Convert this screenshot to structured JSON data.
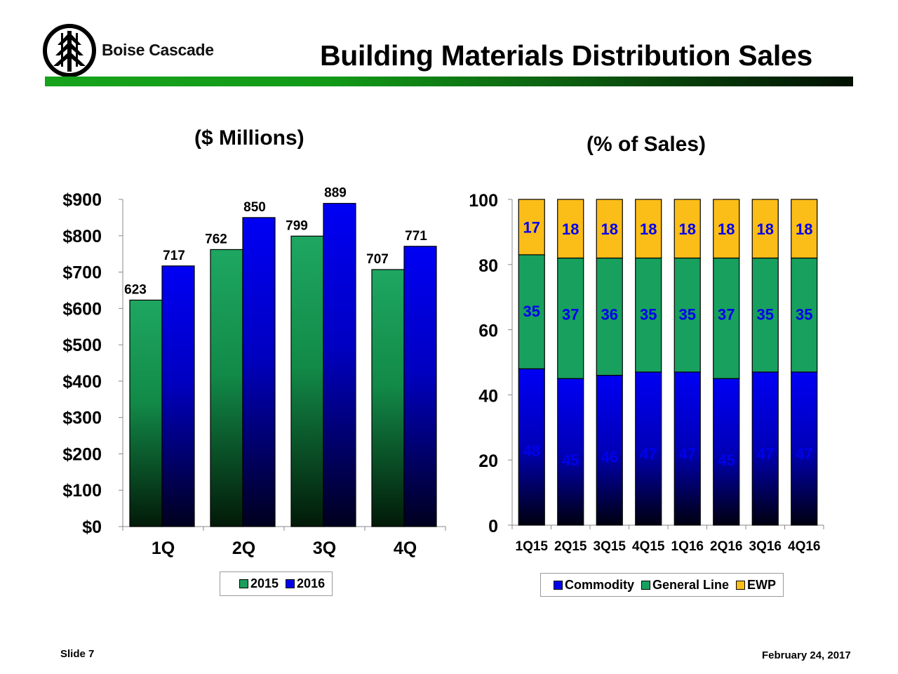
{
  "header": {
    "company": "Boise Cascade",
    "title": "Building Materials Distribution Sales"
  },
  "footer": {
    "slide": "Slide 7",
    "date": "February 24, 2017"
  },
  "colors": {
    "brand_green": "#17a31c",
    "series_2015": "#1a9e5a",
    "series_2016": "#0000ee",
    "commodity": "#0000ee",
    "general_line": "#18a05e",
    "ewp": "#fbbd18"
  },
  "chart_data": [
    {
      "type": "bar",
      "subtitle": "($ Millions)",
      "categories": [
        "1Q",
        "2Q",
        "3Q",
        "4Q"
      ],
      "series": [
        {
          "name": "2015",
          "values": [
            623,
            762,
            799,
            707
          ]
        },
        {
          "name": "2016",
          "values": [
            717,
            850,
            889,
            771
          ]
        }
      ],
      "y_tick_labels": [
        "$0",
        "$100",
        "$200",
        "$300",
        "$400",
        "$500",
        "$600",
        "$700",
        "$800",
        "$900"
      ],
      "ylim": [
        0,
        900
      ],
      "grid": false,
      "legend": "bottom"
    },
    {
      "type": "bar",
      "stacked": true,
      "subtitle": "(% of Sales)",
      "categories": [
        "1Q15",
        "2Q15",
        "3Q15",
        "4Q15",
        "1Q16",
        "2Q16",
        "3Q16",
        "4Q16"
      ],
      "series": [
        {
          "name": "Commodity",
          "values": [
            48,
            45,
            46,
            47,
            47,
            45,
            47,
            47
          ]
        },
        {
          "name": "General Line",
          "values": [
            35,
            37,
            36,
            35,
            35,
            37,
            35,
            35
          ]
        },
        {
          "name": "EWP",
          "values": [
            17,
            18,
            18,
            18,
            18,
            18,
            18,
            18
          ]
        }
      ],
      "y_tick_labels": [
        "0",
        "20",
        "40",
        "60",
        "80",
        "100"
      ],
      "ylim": [
        0,
        100
      ],
      "grid": false,
      "legend": "bottom"
    }
  ]
}
